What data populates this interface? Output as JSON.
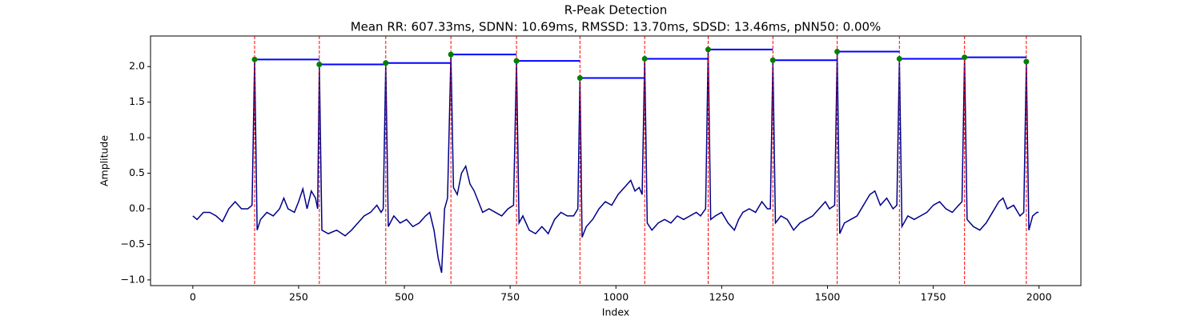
{
  "chart_data": {
    "type": "line",
    "title": "R-Peak Detection",
    "subtitle": "Mean RR: 607.33ms, SDNN: 10.69ms, RMSSD: 13.70ms, SDSD: 13.46ms, pNN50: 0.00%",
    "x_label": "Index",
    "y_label": "Amplitude",
    "xlim": [
      -100,
      2099
    ],
    "ylim": [
      -1.08,
      2.43
    ],
    "xticks": [
      0,
      250,
      500,
      750,
      1000,
      1250,
      1500,
      1750,
      2000
    ],
    "yticks": [
      {
        "value": -1.0,
        "label": "−1.0"
      },
      {
        "value": -0.5,
        "label": "−0.5"
      },
      {
        "value": 0.0,
        "label": "0.0"
      },
      0.5,
      {
        "value": 1.0,
        "label": "1.0"
      },
      1.5,
      {
        "value": 2.0,
        "label": "2.0"
      }
    ],
    "series": [
      {
        "color": "#00008b",
        "x": [
          0,
          10,
          25,
          40,
          55,
          70,
          85,
          100,
          115,
          130,
          140,
          146,
          152,
          160,
          175,
          190,
          205,
          215,
          225,
          240,
          250,
          260,
          270,
          280,
          290,
          295,
          299,
          305,
          320,
          340,
          360,
          375,
          390,
          405,
          420,
          435,
          445,
          450,
          456,
          462,
          475,
          490,
          505,
          520,
          535,
          550,
          560,
          570,
          580,
          588,
          595,
          602,
          610,
          616,
          625,
          635,
          645,
          655,
          665,
          675,
          685,
          700,
          715,
          730,
          745,
          758,
          765,
          771,
          780,
          795,
          810,
          825,
          840,
          855,
          870,
          885,
          900,
          910,
          915,
          920,
          930,
          945,
          960,
          975,
          990,
          1005,
          1020,
          1035,
          1045,
          1055,
          1062,
          1068,
          1074,
          1085,
          1100,
          1115,
          1130,
          1145,
          1160,
          1175,
          1190,
          1200,
          1212,
          1218,
          1224,
          1235,
          1250,
          1265,
          1280,
          1290,
          1300,
          1315,
          1330,
          1345,
          1358,
          1365,
          1371,
          1377,
          1390,
          1405,
          1420,
          1435,
          1450,
          1465,
          1480,
          1495,
          1505,
          1517,
          1523,
          1529,
          1540,
          1555,
          1570,
          1585,
          1600,
          1612,
          1625,
          1640,
          1655,
          1664,
          1670,
          1676,
          1690,
          1705,
          1720,
          1735,
          1750,
          1765,
          1780,
          1795,
          1810,
          1818,
          1824,
          1830,
          1845,
          1860,
          1875,
          1890,
          1905,
          1915,
          1925,
          1940,
          1955,
          1964,
          1970,
          1976,
          1985,
          1995,
          1999
        ],
        "values": [
          -0.1,
          -0.15,
          -0.05,
          -0.05,
          -0.1,
          -0.18,
          0.0,
          0.1,
          0.0,
          0.0,
          0.05,
          2.1,
          -0.3,
          -0.15,
          -0.05,
          -0.1,
          0.0,
          0.15,
          0.0,
          -0.05,
          0.1,
          0.28,
          0.0,
          0.25,
          0.15,
          0.0,
          2.03,
          -0.3,
          -0.35,
          -0.3,
          -0.38,
          -0.3,
          -0.2,
          -0.1,
          -0.05,
          0.05,
          -0.05,
          0.0,
          2.05,
          -0.25,
          -0.1,
          -0.2,
          -0.15,
          -0.25,
          -0.2,
          -0.1,
          -0.05,
          -0.3,
          -0.7,
          -0.9,
          0.0,
          0.15,
          2.17,
          0.3,
          0.2,
          0.5,
          0.6,
          0.35,
          0.25,
          0.1,
          -0.05,
          0.0,
          -0.05,
          -0.1,
          0.0,
          0.05,
          2.08,
          -0.2,
          -0.1,
          -0.3,
          -0.35,
          -0.25,
          -0.35,
          -0.15,
          -0.05,
          -0.1,
          -0.1,
          0.0,
          1.84,
          -0.4,
          -0.25,
          -0.15,
          0.0,
          0.1,
          0.05,
          0.2,
          0.3,
          0.4,
          0.25,
          0.3,
          0.2,
          2.11,
          -0.2,
          -0.3,
          -0.2,
          -0.15,
          -0.2,
          -0.1,
          -0.15,
          -0.1,
          -0.05,
          -0.1,
          0.0,
          2.24,
          -0.15,
          -0.1,
          -0.05,
          -0.2,
          -0.3,
          -0.15,
          -0.05,
          0.0,
          -0.05,
          0.1,
          0.0,
          0.0,
          2.09,
          -0.2,
          -0.1,
          -0.15,
          -0.3,
          -0.2,
          -0.15,
          -0.1,
          0.0,
          0.1,
          0.0,
          0.05,
          2.21,
          -0.35,
          -0.2,
          -0.15,
          -0.1,
          0.05,
          0.2,
          0.25,
          0.05,
          0.15,
          0.0,
          0.05,
          2.11,
          -0.25,
          -0.1,
          -0.15,
          -0.1,
          -0.05,
          0.05,
          0.1,
          0.0,
          -0.05,
          0.05,
          0.1,
          2.13,
          -0.15,
          -0.25,
          -0.3,
          -0.2,
          -0.05,
          0.1,
          0.15,
          0.0,
          0.05,
          -0.1,
          -0.05,
          2.07,
          -0.3,
          -0.1,
          -0.05,
          -0.05
        ]
      }
    ],
    "peaks": {
      "color": "green",
      "line_color": "red",
      "rr_color": "blue",
      "x": [
        146,
        299,
        456,
        610,
        765,
        915,
        1068,
        1218,
        1371,
        1523,
        1670,
        1824,
        1970
      ],
      "values": [
        2.1,
        2.03,
        2.05,
        2.17,
        2.08,
        1.84,
        2.11,
        2.24,
        2.09,
        2.21,
        2.11,
        2.13,
        2.07
      ]
    }
  }
}
